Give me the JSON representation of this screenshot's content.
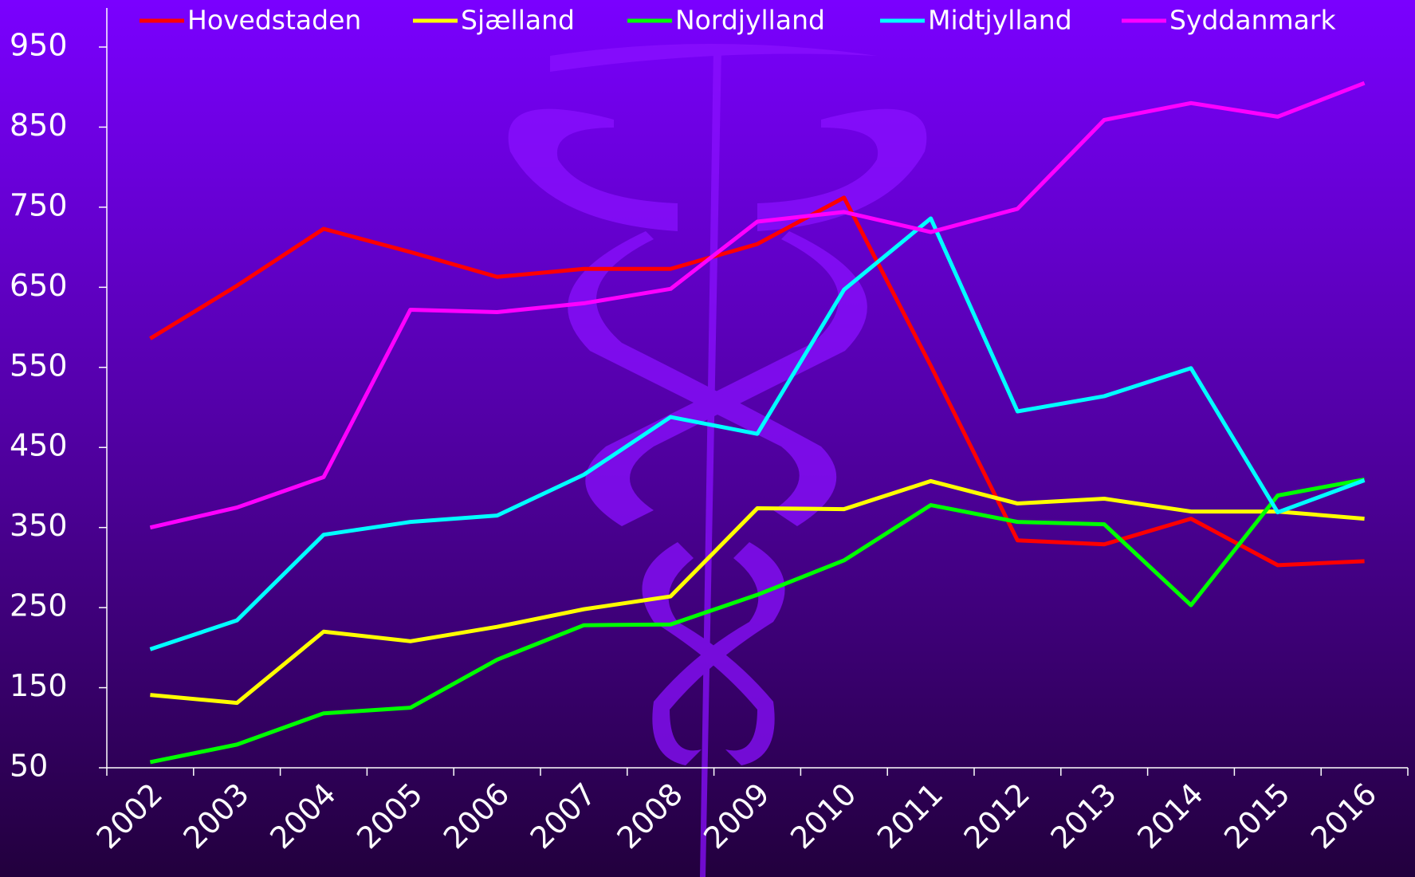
{
  "chart_data": {
    "type": "line",
    "categories": [
      "2002",
      "2003",
      "2004",
      "2005",
      "2006",
      "2007",
      "2008",
      "2009",
      "2010",
      "2011",
      "2012",
      "2013",
      "2014",
      "2015",
      "2016"
    ],
    "series": [
      {
        "name": "Hovedstaden",
        "color": "#ff0000",
        "values": [
          586,
          652,
          723,
          694,
          663,
          673,
          673,
          704,
          762,
          552,
          334,
          329,
          361,
          303,
          308
        ]
      },
      {
        "name": "Sjælland",
        "color": "#ffff00",
        "values": [
          141,
          131,
          220,
          208,
          226,
          248,
          264,
          374,
          373,
          408,
          380,
          386,
          370,
          370,
          361
        ]
      },
      {
        "name": "Nordjylland",
        "color": "#00ff00",
        "values": [
          57,
          79,
          118,
          125,
          185,
          228,
          229,
          266,
          309,
          378,
          357,
          354,
          253,
          390,
          410
        ]
      },
      {
        "name": "Midtjylland",
        "color": "#00ffff",
        "values": [
          198,
          234,
          341,
          357,
          365,
          416,
          488,
          467,
          647,
          736,
          495,
          514,
          549,
          369,
          409
        ]
      },
      {
        "name": "Syddanmark",
        "color": "#ff00ff",
        "values": [
          350,
          375,
          413,
          622,
          619,
          630,
          648,
          732,
          744,
          719,
          748,
          859,
          880,
          863,
          905
        ]
      }
    ],
    "ylim": [
      50,
      950
    ],
    "yticks": [
      50,
      150,
      250,
      350,
      450,
      550,
      650,
      750,
      850,
      950
    ],
    "grid": false
  }
}
